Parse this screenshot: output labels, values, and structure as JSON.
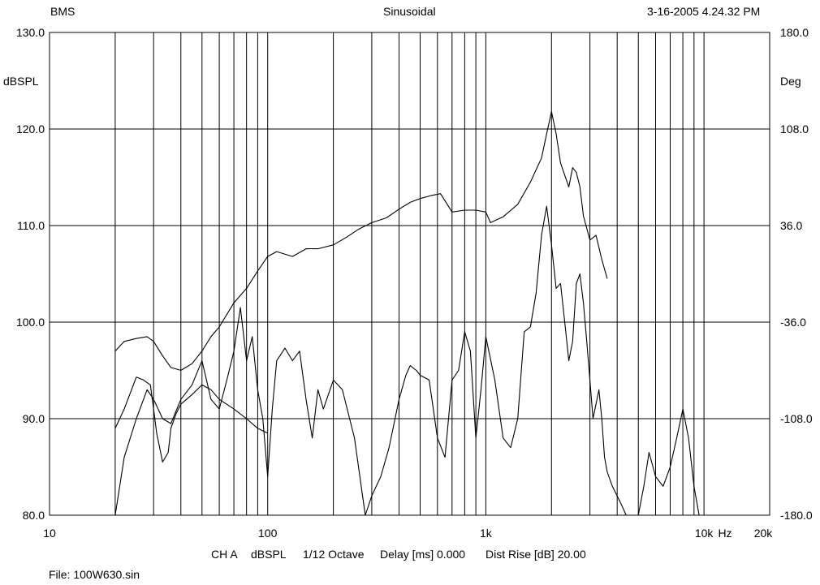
{
  "header": {
    "left": "BMS",
    "center": "Sinusoidal",
    "right": "3-16-2005 4.24.32 PM"
  },
  "footer": {
    "channel": "CH A",
    "unit": "dBSPL",
    "smoothing": "1/12 Octave",
    "delay": "Delay [ms] 0.000",
    "dist_rise": "Dist Rise [dB] 20.00",
    "file": "File: 100W630.sin"
  },
  "chart_data": {
    "type": "line",
    "title": "Sinusoidal",
    "xscale": "log",
    "xlim": [
      10,
      20000
    ],
    "ylim": [
      80,
      130
    ],
    "y2lim": [
      -180,
      180
    ],
    "grid": true,
    "ylabel": "dBSPL",
    "y2label": "Deg",
    "xunit": "Hz",
    "x_ticks": [
      {
        "value": 10,
        "label": "10"
      },
      {
        "value": 100,
        "label": "100"
      },
      {
        "value": 1000,
        "label": "1k"
      },
      {
        "value": 10000,
        "label": "10k"
      },
      {
        "value": 20000,
        "label": "20k"
      }
    ],
    "y_ticks": [
      "80.0",
      "90.0",
      "100.0",
      "110.0",
      "120.0",
      "130.0"
    ],
    "y2_ticks": [
      "-180.0",
      "-108.0",
      "-36.0",
      "36.0",
      "108.0",
      "180.0"
    ],
    "series": [
      {
        "role": "spl",
        "x": [
          20,
          22,
          25,
          28,
          30,
          33,
          36,
          40,
          45,
          50,
          55,
          60,
          70,
          80,
          90,
          100,
          110,
          130,
          150,
          170,
          200,
          230,
          260,
          300,
          350,
          400,
          450,
          500,
          560,
          620,
          700,
          800,
          900,
          1000,
          1050,
          1200,
          1400,
          1600,
          1800,
          1900,
          2000,
          2100,
          2200,
          2300,
          2400,
          2500,
          2600,
          2700,
          2800,
          3000,
          3200,
          3400,
          3600
        ],
        "y": [
          97.0,
          98.0,
          98.3,
          98.5,
          98.0,
          96.5,
          95.3,
          95.0,
          95.7,
          97.0,
          98.5,
          99.5,
          102.0,
          103.5,
          105.3,
          106.8,
          107.3,
          106.8,
          107.6,
          107.6,
          108.0,
          108.8,
          109.6,
          110.3,
          110.8,
          111.7,
          112.4,
          112.8,
          113.1,
          113.3,
          111.4,
          111.6,
          111.6,
          111.4,
          110.3,
          110.9,
          112.2,
          114.5,
          117.0,
          119.5,
          121.8,
          119.5,
          116.5,
          115.2,
          114.0,
          116.0,
          115.5,
          114.0,
          111.0,
          108.5,
          109.0,
          106.5,
          104.5
        ]
      },
      {
        "role": "phase",
        "x": [
          20,
          22,
          25,
          27,
          29,
          30,
          31,
          33,
          35,
          36,
          38,
          40,
          45,
          50,
          55,
          60,
          70,
          80,
          90,
          100
        ],
        "y": [
          89.0,
          91.0,
          94.3,
          94.0,
          93.5,
          91.0,
          88.5,
          85.5,
          86.5,
          89.0,
          90.5,
          91.5,
          92.5,
          93.5,
          93.0,
          92.0,
          91.0,
          90.0,
          89.0,
          88.5
        ]
      },
      {
        "role": "distortion",
        "x": [
          20,
          22,
          25,
          28,
          30,
          33,
          36,
          40,
          45,
          50,
          55,
          60,
          65,
          70,
          75,
          80,
          85,
          90,
          95,
          100,
          105,
          110,
          120,
          130,
          140,
          150,
          160,
          170,
          180,
          200,
          220,
          250,
          280,
          300,
          330,
          360,
          400,
          430,
          450,
          480,
          500,
          550,
          600,
          650,
          700,
          750,
          800,
          850,
          900,
          950,
          1000,
          1100,
          1200,
          1300,
          1400,
          1500,
          1600,
          1700,
          1800,
          1900,
          2000,
          2100,
          2200,
          2300,
          2400,
          2500,
          2600,
          2700,
          2800,
          2900,
          3000,
          3100,
          3200,
          3300,
          3400,
          3500,
          3600,
          3800,
          4000,
          4200,
          4400,
          4700,
          5000,
          5300,
          5600,
          6000,
          6500,
          7000,
          7500,
          8000,
          8500,
          9000,
          9500,
          10000,
          10500,
          11000,
          12000,
          14000,
          16000,
          18000,
          19000,
          20000
        ],
        "y": [
          80,
          86,
          90,
          93,
          92,
          90,
          89.5,
          92,
          93.5,
          96,
          92,
          91,
          94,
          97,
          101.5,
          96,
          98.5,
          93,
          90,
          84,
          91,
          96,
          97.3,
          96,
          97,
          92,
          88,
          93,
          91,
          94,
          93,
          88,
          80,
          82,
          84,
          87,
          92,
          94.5,
          95.5,
          95,
          94.5,
          94,
          88,
          86,
          94,
          95,
          99,
          97,
          88,
          93,
          98.5,
          94,
          88,
          87,
          90,
          99,
          99.5,
          103,
          109,
          112,
          108,
          103.5,
          104,
          100,
          96,
          98,
          104,
          105,
          102,
          98,
          94,
          90,
          91.5,
          93,
          90,
          86,
          84.5,
          83,
          82,
          81,
          80,
          80,
          80,
          83,
          86.5,
          84,
          83,
          85,
          88,
          91,
          88,
          83,
          80,
          80,
          80,
          80,
          80,
          80,
          80,
          80,
          80,
          80
        ]
      }
    ]
  }
}
